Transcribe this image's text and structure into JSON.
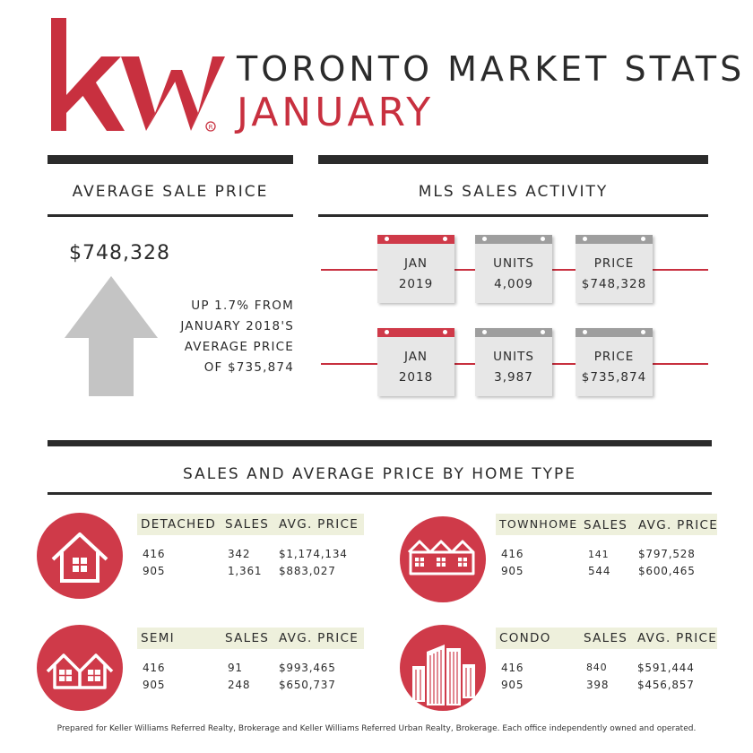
{
  "header": {
    "logo_text": "kw",
    "title": "TORONTO MARKET STATS",
    "month": "JANUARY",
    "brand_color": "#c8303f"
  },
  "average_sale_price": {
    "heading": "AVERAGE SALE PRICE",
    "price": "$748,328",
    "change_lines": [
      "UP 1.7% FROM",
      "JANUARY 2018'S",
      "AVERAGE PRICE",
      "OF $735,874"
    ]
  },
  "mls_sales_activity": {
    "heading": "MLS SALES ACTIVITY",
    "rows": [
      {
        "period": [
          "JAN",
          "2019"
        ],
        "units": [
          "UNITS",
          "4,009"
        ],
        "price": [
          "PRICE",
          "$748,328"
        ]
      },
      {
        "period": [
          "JAN",
          "2018"
        ],
        "units": [
          "UNITS",
          "3,987"
        ],
        "price": [
          "PRICE",
          "$735,874"
        ]
      }
    ]
  },
  "home_types": {
    "heading": "SALES AND AVERAGE PRICE BY HOME TYPE",
    "detached": {
      "icon": "house-icon",
      "headers": [
        "DETACHED",
        "SALES",
        "AVG. PRICE"
      ],
      "rows": [
        [
          "416",
          "342",
          "$1,174,134"
        ],
        [
          "905",
          "1,361",
          "$883,027"
        ]
      ]
    },
    "townhome": {
      "icon": "townhouses-icon",
      "headers": [
        "TOWNHOME",
        "SALES",
        "AVG. PRICE"
      ],
      "rows": [
        [
          "416",
          "141",
          "$797,528"
        ],
        [
          "905",
          "544",
          "$600,465"
        ]
      ]
    },
    "semi": {
      "icon": "semi-detached-icon",
      "headers": [
        "SEMI",
        "SALES",
        "AVG. PRICE"
      ],
      "rows": [
        [
          "416",
          "91",
          "$993,465"
        ],
        [
          "905",
          "248",
          "$650,737"
        ]
      ]
    },
    "condo": {
      "icon": "condo-buildings-icon",
      "headers": [
        "CONDO",
        "SALES",
        "AVG. PRICE"
      ],
      "rows": [
        [
          "416",
          "840",
          "$591,444"
        ],
        [
          "905",
          "398",
          "$456,857"
        ]
      ]
    }
  },
  "footer": "Prepared for Keller Williams Referred Realty, Brokerage and Keller Williams Referred Urban Realty, Brokerage. Each office independently owned and operated."
}
